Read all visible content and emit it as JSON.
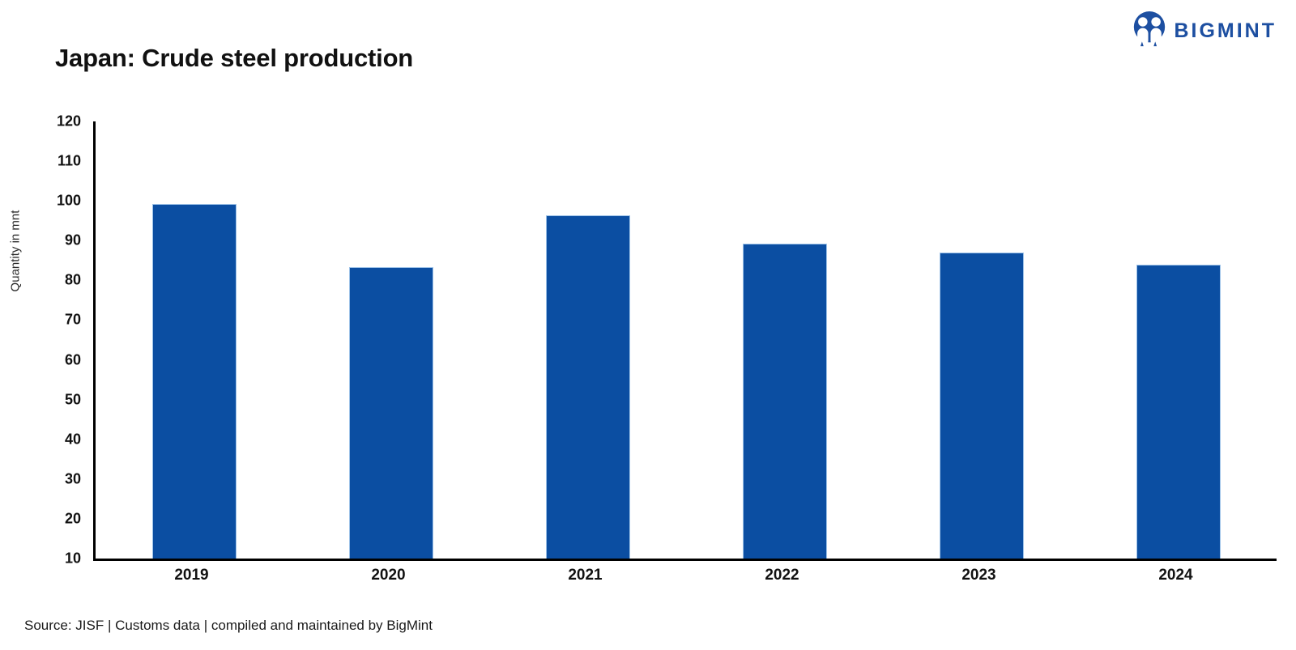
{
  "header": {
    "title": "Japan: Crude steel production",
    "logo_text": "BIGMINT"
  },
  "chart_data": {
    "type": "bar",
    "title": "Japan: Crude steel production",
    "categories": [
      "2019",
      "2020",
      "2021",
      "2022",
      "2023",
      "2024"
    ],
    "values": [
      99.3,
      83.4,
      96.3,
      89.2,
      87.0,
      84.0
    ],
    "xlabel": "",
    "ylabel": "Quantity in mnt",
    "ylim": [
      10,
      120
    ],
    "ytick_step": 10,
    "grid": false,
    "legend": false,
    "bar_color": "#0b4ea2",
    "bar_edge_color": "#9dc2e8",
    "axis_color": "#000000"
  },
  "footer": {
    "source": "Source: JISF | Customs data | compiled and maintained by BigMint"
  },
  "colors": {
    "logo_blue": "#1d4fa1",
    "text_dark": "#111111"
  }
}
